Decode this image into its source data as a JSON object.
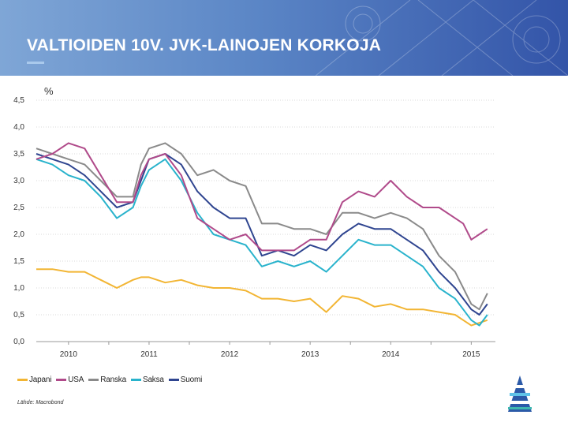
{
  "header": {
    "title": "VALTIOIDEN 10V. JVK-LAINOJEN KORKOJA"
  },
  "colors": {
    "japani": "#f2b533",
    "usa": "#b04a8a",
    "ranska": "#8a8a8a",
    "saksa": "#29b3cc",
    "suomi": "#2f4590"
  },
  "chart_data": {
    "type": "line",
    "title": "VALTIOIDEN 10V. JVK-LAINOJEN KORKOJA",
    "ylabel": "%",
    "xlabel": "",
    "ylim": [
      0,
      4.5
    ],
    "xlim": [
      2009.6,
      2015.3
    ],
    "y_ticks": [
      "4,5",
      "4,0",
      "3,5",
      "3,0",
      "2,5",
      "2,0",
      "1,5",
      "1,0",
      "0,5",
      "0,0"
    ],
    "y_tick_values": [
      4.5,
      4.0,
      3.5,
      3.0,
      2.5,
      2.0,
      1.5,
      1.0,
      0.5,
      0.0
    ],
    "x_ticks": [
      "2010",
      "2011",
      "2012",
      "2013",
      "2014",
      "2015"
    ],
    "x_tick_values": [
      2010.0,
      2011.0,
      2012.0,
      2013.0,
      2014.0,
      2015.0
    ],
    "grid": true,
    "legend_position": "bottom-left",
    "x": [
      2009.6,
      2009.8,
      2010.0,
      2010.2,
      2010.4,
      2010.6,
      2010.8,
      2010.9,
      2011.0,
      2011.2,
      2011.4,
      2011.6,
      2011.8,
      2012.0,
      2012.2,
      2012.4,
      2012.6,
      2012.8,
      2013.0,
      2013.2,
      2013.4,
      2013.6,
      2013.8,
      2014.0,
      2014.2,
      2014.4,
      2014.6,
      2014.8,
      2014.9,
      2015.0,
      2015.1,
      2015.2
    ],
    "series": [
      {
        "name": "Japani",
        "values": [
          1.35,
          1.35,
          1.3,
          1.3,
          1.15,
          1.0,
          1.15,
          1.2,
          1.2,
          1.1,
          1.15,
          1.05,
          1.0,
          1.0,
          0.95,
          0.8,
          0.8,
          0.75,
          0.8,
          0.55,
          0.85,
          0.8,
          0.65,
          0.7,
          0.6,
          0.6,
          0.55,
          0.5,
          0.4,
          0.3,
          0.35,
          0.4
        ]
      },
      {
        "name": "USA",
        "values": [
          3.4,
          3.5,
          3.7,
          3.6,
          3.1,
          2.6,
          2.6,
          3.1,
          3.4,
          3.5,
          3.1,
          2.3,
          2.1,
          1.9,
          2.0,
          1.7,
          1.7,
          1.7,
          1.9,
          1.9,
          2.6,
          2.8,
          2.7,
          3.0,
          2.7,
          2.5,
          2.5,
          2.3,
          2.2,
          1.9,
          2.0,
          2.1
        ]
      },
      {
        "name": "Ranska",
        "values": [
          3.6,
          3.5,
          3.4,
          3.3,
          3.0,
          2.7,
          2.7,
          3.3,
          3.6,
          3.7,
          3.5,
          3.1,
          3.2,
          3.0,
          2.9,
          2.2,
          2.2,
          2.1,
          2.1,
          2.0,
          2.4,
          2.4,
          2.3,
          2.4,
          2.3,
          2.1,
          1.6,
          1.3,
          1.0,
          0.7,
          0.6,
          0.9
        ]
      },
      {
        "name": "Saksa",
        "values": [
          3.4,
          3.3,
          3.1,
          3.0,
          2.7,
          2.3,
          2.5,
          2.9,
          3.2,
          3.4,
          3.0,
          2.4,
          2.0,
          1.9,
          1.8,
          1.4,
          1.5,
          1.4,
          1.5,
          1.3,
          1.6,
          1.9,
          1.8,
          1.8,
          1.6,
          1.4,
          1.0,
          0.8,
          0.6,
          0.4,
          0.3,
          0.5
        ]
      },
      {
        "name": "Suomi",
        "values": [
          3.5,
          3.4,
          3.3,
          3.1,
          2.8,
          2.5,
          2.6,
          3.0,
          3.4,
          3.5,
          3.3,
          2.8,
          2.5,
          2.3,
          2.3,
          1.6,
          1.7,
          1.6,
          1.8,
          1.7,
          2.0,
          2.2,
          2.1,
          2.1,
          1.9,
          1.7,
          1.3,
          1.0,
          0.8,
          0.6,
          0.5,
          0.7
        ]
      }
    ]
  },
  "legend": [
    {
      "label": "Japani",
      "color": "#f2b533"
    },
    {
      "label": "USA",
      "color": "#b04a8a"
    },
    {
      "label": "Ranska",
      "color": "#8a8a8a"
    },
    {
      "label": "Saksa",
      "color": "#29b3cc"
    },
    {
      "label": "Suomi",
      "color": "#2f4590"
    }
  ],
  "footer": {
    "source": "Lähde: Macrobond"
  },
  "logo": {
    "icon": "company-logo-icon"
  }
}
